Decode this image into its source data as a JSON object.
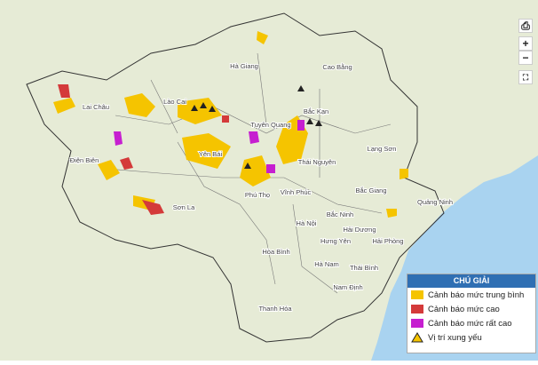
{
  "places": [
    "Hà Giang",
    "Cao Bằng",
    "Lào Cai",
    "Lai Châu",
    "Bắc Kạn",
    "Tuyên Quang",
    "Lạng Sơn",
    "Yên Bái",
    "Điện Biên",
    "Thái Nguyên",
    "Bắc Giang",
    "Phú Thọ",
    "Vĩnh Phúc",
    "Quảng Ninh",
    "Sơn La",
    "Bắc Ninh",
    "Hà Nội",
    "Hải Dương",
    "Hưng Yên",
    "Hải Phòng",
    "Hòa Bình",
    "Hà Nam",
    "Thái Bình",
    "Nam Định",
    "Thanh Hóa"
  ],
  "legend": {
    "title": "CHÚ GIẢI",
    "items": [
      "Cảnh báo mức trung bình",
      "Cảnh báo mức cao",
      "Cảnh báo mức rất cao",
      "Vị trí xung yếu"
    ]
  },
  "controls": {
    "zoom_in": "+",
    "zoom_out": "−"
  }
}
